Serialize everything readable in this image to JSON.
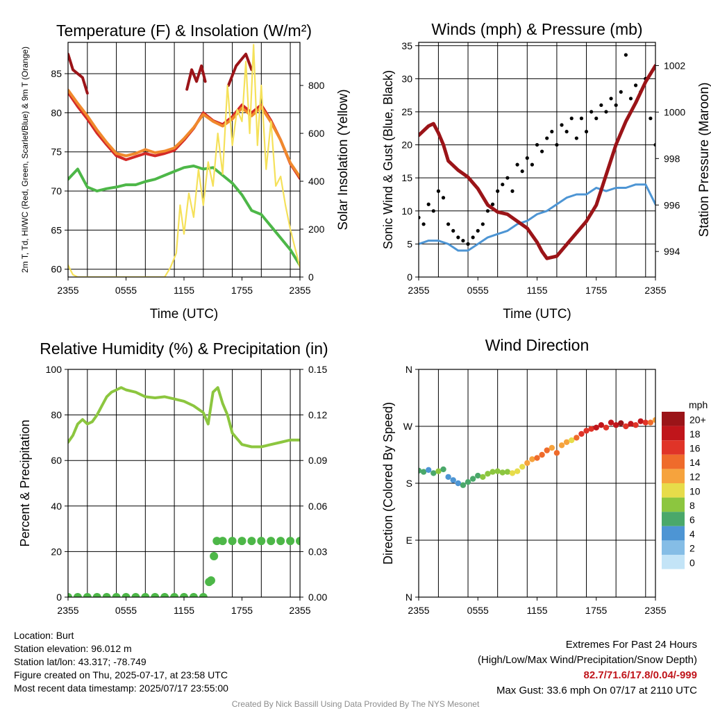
{
  "credit": "Created By Nick Bassill Using Data Provided By The NYS Mesonet",
  "station_info": {
    "location": "Location: Burt",
    "elevation": "Station elevation: 96.012 m",
    "latlon": "Station lat/lon: 43.317; -78.749",
    "created": "Figure created on Thu, 2025-07-17, at 23:58 UTC",
    "latest": "Most recent data timestamp: 2025/07/17 23:55:00"
  },
  "extremes": {
    "title": "Extremes For Past 24 Hours",
    "legend": "(High/Low/Max Wind/Precipitation/Snow Depth)",
    "values": "82.7/71.6/17.8/0.04/-999",
    "gust": "Max Gust: 33.6 mph On 07/17 at 2110 UTC"
  },
  "colors": {
    "temperature": "#d42a27",
    "dewpoint": "#4db748",
    "heat_index": "#9b1418",
    "temp_9m": "#f0892c",
    "insolation": "#f5e15a",
    "wind": "#4d95d4",
    "gust": "#000000",
    "pressure": "#9b1418",
    "rh": "#8cc63f",
    "precip": "#4db748"
  },
  "chart_data": [
    {
      "type": "line",
      "title": "Temperature (F) & Insolation (W/m²)",
      "xlabel": "Time (UTC)",
      "ylabel": "2m T, Td, HI/WC (Red, Green, Scarlet/Blue) & 9m T (Orange)",
      "ylabel_right": "Solar Insolation (Yellow)",
      "xticks": [
        "2355",
        "0555",
        "1155",
        "1755",
        "2355"
      ],
      "xlim_hours": [
        0,
        24
      ],
      "ylim": [
        59,
        89
      ],
      "yticks": [
        60,
        65,
        70,
        75,
        80,
        85
      ],
      "ylim_right": [
        0,
        980
      ],
      "yticks_right": [
        0,
        200,
        400,
        600,
        800
      ],
      "series": [
        {
          "name": "2m T",
          "axis": "left",
          "color": "#d42a27",
          "x": [
            0,
            1,
            2,
            3,
            4,
            5,
            6,
            7,
            8,
            9,
            10,
            11,
            12,
            13,
            14,
            15,
            16,
            17,
            18,
            19,
            20,
            21,
            22,
            23,
            24
          ],
          "values": [
            82.6,
            80.8,
            79.2,
            77.4,
            75.9,
            74.5,
            74.0,
            74.4,
            74.8,
            74.5,
            74.8,
            75.2,
            76.5,
            78.0,
            80.0,
            79.0,
            78.5,
            79.5,
            81.0,
            80.0,
            81.0,
            79.0,
            76.5,
            73.5,
            71.6
          ]
        },
        {
          "name": "9m T",
          "axis": "left",
          "color": "#f0892c",
          "x": [
            0,
            1,
            2,
            3,
            4,
            5,
            6,
            7,
            8,
            9,
            10,
            11,
            12,
            13,
            14,
            15,
            16,
            17,
            18,
            19,
            20,
            21,
            22,
            23,
            24
          ],
          "values": [
            82.9,
            81.2,
            79.6,
            77.8,
            76.2,
            74.8,
            74.5,
            74.8,
            75.3,
            74.9,
            75.1,
            75.5,
            76.7,
            78.1,
            79.8,
            78.9,
            78.3,
            79.2,
            80.6,
            79.6,
            80.7,
            78.8,
            76.5,
            73.6,
            71.8
          ]
        },
        {
          "name": "Td",
          "axis": "left",
          "color": "#4db748",
          "x": [
            0,
            1,
            2,
            3,
            4,
            5,
            6,
            7,
            8,
            9,
            10,
            11,
            12,
            13,
            14,
            15,
            16,
            17,
            18,
            19,
            20,
            21,
            22,
            23,
            24
          ],
          "values": [
            71.5,
            72.8,
            70.5,
            70.0,
            70.3,
            70.5,
            70.8,
            70.8,
            71.2,
            71.5,
            72.0,
            72.5,
            73.0,
            73.2,
            72.8,
            73.0,
            72.0,
            71.0,
            69.5,
            67.5,
            67.0,
            65.5,
            64.0,
            62.5,
            60.5
          ]
        },
        {
          "name": "HI early",
          "axis": "left",
          "color": "#9b1418",
          "x": [
            0,
            0.5,
            1,
            1.5,
            2.0
          ],
          "values": [
            87.5,
            85.5,
            85.0,
            84.5,
            82.5
          ]
        },
        {
          "name": "HI midday",
          "axis": "left",
          "color": "#9b1418",
          "x": [
            12.3,
            12.8,
            13.3,
            13.8,
            14.2
          ],
          "values": [
            83.0,
            85.5,
            84.0,
            86.0,
            84.0
          ]
        },
        {
          "name": "HI afternoon",
          "axis": "left",
          "color": "#9b1418",
          "x": [
            16.6,
            17.4,
            18.4,
            19.0
          ],
          "values": [
            83.5,
            86.0,
            87.5,
            85.5
          ]
        },
        {
          "name": "Insolation",
          "axis": "right",
          "color": "#f5e15a",
          "x": [
            0,
            0.5,
            1,
            2,
            4,
            6,
            8,
            10,
            10.6,
            11.2,
            11.6,
            12.0,
            12.5,
            13.0,
            13.5,
            14.0,
            14.5,
            15.0,
            15.5,
            16.0,
            16.5,
            17.0,
            17.5,
            18.0,
            18.4,
            18.8,
            19.2,
            19.6,
            20.0,
            20.5,
            21.0,
            21.5,
            22.0,
            22.5,
            23.0,
            23.5,
            24.0
          ],
          "values": [
            50,
            10,
            0,
            0,
            0,
            0,
            0,
            0,
            40,
            100,
            300,
            180,
            350,
            250,
            450,
            300,
            480,
            380,
            600,
            430,
            800,
            550,
            700,
            650,
            900,
            600,
            970,
            550,
            800,
            450,
            650,
            380,
            420,
            300,
            200,
            120,
            40
          ]
        }
      ]
    },
    {
      "type": "line",
      "title": "Winds (mph) & Pressure (mb)",
      "xlabel": "Time (UTC)",
      "ylabel": "Sonic Wind & Gust (Blue, Black)",
      "ylabel_right": "Station Pressure (Maroon)",
      "xticks": [
        "2355",
        "0555",
        "1155",
        "1755",
        "2355"
      ],
      "xlim_hours": [
        0,
        24
      ],
      "ylim": [
        0,
        35.5
      ],
      "yticks": [
        0,
        5,
        10,
        15,
        20,
        25,
        30,
        35
      ],
      "ylim_right": [
        992.9,
        1003
      ],
      "yticks_right": [
        994,
        996,
        998,
        1000,
        1002
      ],
      "series": [
        {
          "name": "Wind",
          "axis": "left",
          "color": "#4d95d4",
          "x": [
            0,
            1,
            2,
            3,
            4,
            5,
            6,
            7,
            8,
            9,
            10,
            11,
            12,
            13,
            14,
            15,
            16,
            17,
            18,
            19,
            20,
            21,
            22,
            23,
            24
          ],
          "values": [
            5.0,
            5.5,
            5.5,
            5.0,
            4.0,
            4.0,
            5.0,
            6.0,
            6.5,
            7.0,
            8.0,
            8.5,
            9.5,
            10.0,
            11.0,
            12.0,
            12.5,
            12.5,
            13.5,
            13.0,
            13.5,
            13.5,
            14.0,
            14.0,
            11.0
          ]
        },
        {
          "name": "Gust",
          "axis": "left",
          "color": "#000000",
          "style": "points",
          "x": [
            0,
            0.5,
            1,
            1.5,
            2,
            2.5,
            3,
            3.5,
            4,
            4.5,
            5,
            5.5,
            6,
            6.5,
            7,
            7.5,
            8,
            8.5,
            9,
            9.5,
            10,
            10.5,
            11,
            11.5,
            12,
            12.5,
            13,
            13.5,
            14,
            14.5,
            15,
            15.5,
            16,
            16.5,
            17,
            17.5,
            18,
            18.5,
            19,
            19.5,
            20,
            20.5,
            21,
            21.5,
            22,
            22.5,
            23,
            23.5,
            24
          ],
          "values": [
            9,
            8,
            11,
            10,
            13,
            12,
            8,
            7,
            6,
            5.5,
            5,
            6,
            7,
            8,
            10,
            11,
            13,
            14,
            15,
            13,
            17,
            16,
            18,
            17,
            20,
            19,
            21,
            22,
            20,
            23,
            22,
            24,
            21,
            24,
            22,
            25,
            24,
            26,
            25,
            27,
            26,
            28,
            33.6,
            27,
            29,
            28,
            30,
            24,
            20
          ]
        },
        {
          "name": "Pressure",
          "axis": "right",
          "color": "#9b1418",
          "x": [
            0,
            1,
            1.5,
            2,
            2.5,
            3,
            4,
            5,
            6,
            7,
            8,
            9,
            10,
            11,
            12,
            12.5,
            13,
            14,
            15,
            16,
            17,
            18,
            19,
            20,
            21,
            22,
            23,
            24
          ],
          "values": [
            999.0,
            999.4,
            999.5,
            999.1,
            998.6,
            997.9,
            997.5,
            997.2,
            996.7,
            996.0,
            995.7,
            995.6,
            995.3,
            995.0,
            994.4,
            994.0,
            993.7,
            993.8,
            994.3,
            994.8,
            995.3,
            996.0,
            997.3,
            998.6,
            999.6,
            1000.4,
            1001.3,
            1002.0
          ]
        }
      ]
    },
    {
      "type": "line",
      "title": "Relative Humidity (%) & Precipitation (in)",
      "xlabel": "",
      "ylabel": "Percent & Precipitation",
      "xticks": [
        "2355",
        "0555",
        "1155",
        "1755",
        "2355"
      ],
      "xlim_hours": [
        0,
        24
      ],
      "ylim": [
        0,
        100
      ],
      "yticks": [
        0,
        20,
        40,
        60,
        80,
        100
      ],
      "ylim_right": [
        0,
        0.15
      ],
      "yticks_right": [
        "0.00",
        "0.03",
        "0.06",
        "0.09",
        "0.12",
        "0.15"
      ],
      "series": [
        {
          "name": "RH",
          "axis": "left",
          "color": "#8cc63f",
          "x": [
            0,
            0.5,
            1,
            1.5,
            2,
            2.5,
            3,
            3.5,
            4,
            4.5,
            5,
            5.5,
            6,
            7,
            8,
            9,
            10,
            11,
            12,
            13,
            14,
            14.5,
            15,
            15.5,
            16,
            16.5,
            17,
            18,
            19,
            20,
            21,
            22,
            23,
            24
          ],
          "values": [
            68,
            71,
            76,
            78,
            76,
            77,
            80,
            84,
            88,
            90,
            91,
            92,
            91,
            90,
            88,
            87.5,
            88,
            87,
            86,
            84,
            81,
            76,
            90,
            92,
            85,
            80,
            72,
            67,
            66,
            66,
            67,
            68,
            69,
            69
          ]
        },
        {
          "name": "Precipitation",
          "axis": "right",
          "color": "#4db748",
          "style": "points",
          "x": [
            0,
            1,
            2,
            3,
            4,
            5,
            6,
            7,
            8,
            9,
            10,
            11,
            12,
            13,
            14,
            14.6,
            14.8,
            15.1,
            15.4,
            16,
            17,
            18,
            19,
            20,
            21,
            22,
            23,
            24
          ],
          "values": [
            0,
            0,
            0,
            0,
            0,
            0,
            0,
            0,
            0,
            0,
            0,
            0,
            0,
            0,
            0,
            0.01,
            0.011,
            0.027,
            0.037,
            0.037,
            0.037,
            0.037,
            0.037,
            0.037,
            0.037,
            0.037,
            0.037,
            0.037
          ]
        }
      ]
    },
    {
      "type": "scatter",
      "title": "Wind Direction",
      "ylabel": "Direction (Colored By Speed)",
      "xticks": [
        "2355",
        "0555",
        "1155",
        "1755",
        "2355"
      ],
      "xlim_hours": [
        0,
        24
      ],
      "ylim": [
        0,
        360
      ],
      "yticks": [
        "N",
        "E",
        "S",
        "W",
        "N"
      ],
      "colorbar": {
        "title": "mph",
        "labels": [
          "20+",
          "18",
          "16",
          "14",
          "12",
          "10",
          "8",
          "6",
          "4",
          "2",
          "0"
        ],
        "colors": [
          "#9b1418",
          "#c0151b",
          "#e03428",
          "#ef6b2b",
          "#f6a33d",
          "#e7dc4a",
          "#8cc63f",
          "#4aa86a",
          "#4d95d4",
          "#85bde6",
          "#c3e4f7"
        ]
      },
      "series": [
        {
          "name": "Direction",
          "x": [
            0,
            0.5,
            1,
            1.5,
            2,
            2.5,
            3,
            3.5,
            4,
            4.5,
            5,
            5.5,
            6,
            6.5,
            7,
            7.5,
            8,
            8.5,
            9,
            9.5,
            10,
            10.5,
            11,
            11.5,
            12,
            12.5,
            13,
            13.5,
            14,
            14.5,
            15,
            15.5,
            16,
            16.5,
            17,
            17.5,
            18,
            18.5,
            19,
            19.5,
            20,
            20.5,
            21,
            21.5,
            22,
            22.5,
            23,
            23.5,
            24
          ],
          "values": [
            200,
            198,
            201,
            196,
            199,
            202,
            190,
            185,
            180,
            177,
            182,
            187,
            192,
            190,
            195,
            198,
            199,
            197,
            198,
            196,
            199,
            206,
            212,
            218,
            220,
            225,
            232,
            236,
            228,
            240,
            245,
            248,
            252,
            258,
            263,
            266,
            268,
            272,
            268,
            276,
            272,
            275,
            270,
            274,
            272,
            278,
            276,
            276,
            280
          ],
          "speeds": [
            5,
            6,
            4,
            5,
            7,
            6,
            4,
            4,
            4,
            5,
            5,
            6,
            6,
            7,
            7,
            7,
            8,
            8,
            8,
            9,
            9,
            10,
            11,
            12,
            13,
            14,
            13,
            12,
            14,
            11,
            12,
            10,
            14,
            16,
            15,
            16,
            17,
            18,
            16,
            17,
            18,
            19,
            16,
            18,
            16,
            17,
            15,
            14,
            12
          ]
        }
      ]
    }
  ]
}
